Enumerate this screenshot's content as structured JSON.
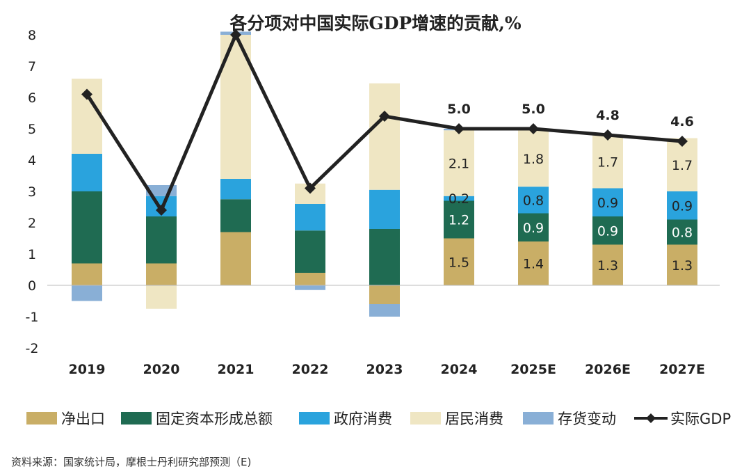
{
  "chart_data": {
    "type": "bar",
    "title": "各分项对中国实际GDP增速的贡献,%",
    "categories": [
      "2019",
      "2020",
      "2021",
      "2022",
      "2023",
      "2024",
      "2025E",
      "2026E",
      "2027E"
    ],
    "ylim": [
      -2,
      8
    ],
    "yticks": [
      8,
      7,
      6,
      5,
      4,
      3,
      2,
      1,
      0,
      -1,
      -2
    ],
    "grid": false,
    "legend_position": "bottom",
    "stacked": true,
    "series": [
      {
        "name": "净出口",
        "color": "#C9AE66",
        "values": [
          0.7,
          0.7,
          1.7,
          0.4,
          -0.6,
          1.5,
          1.4,
          1.3,
          1.3
        ],
        "labels": [
          "",
          "",
          "",
          "",
          "",
          "1.5",
          "1.4",
          "1.3",
          "1.3"
        ]
      },
      {
        "name": "固定资本形成总额",
        "color": "#1F6B52",
        "values": [
          2.3,
          1.5,
          1.05,
          1.35,
          1.8,
          1.2,
          0.9,
          0.9,
          0.8
        ],
        "labels": [
          "",
          "",
          "",
          "",
          "",
          "1.2",
          "0.9",
          "0.9",
          "0.8"
        ]
      },
      {
        "name": "政府消费",
        "color": "#2AA3DD",
        "values": [
          1.2,
          0.65,
          0.65,
          0.85,
          1.25,
          0.15,
          0.85,
          0.9,
          0.9
        ],
        "labels": [
          "",
          "",
          "",
          "",
          "",
          "0.2",
          "0.8",
          "0.9",
          "0.9"
        ]
      },
      {
        "name": "居民消费",
        "color": "#EFE6C3",
        "values": [
          2.4,
          -0.75,
          4.6,
          0.65,
          3.4,
          2.1,
          1.8,
          1.7,
          1.7
        ],
        "labels": [
          "",
          "",
          "",
          "",
          "",
          "2.1",
          "1.8",
          "1.7",
          "1.7"
        ]
      },
      {
        "name": "存货变动",
        "color": "#89AFD6",
        "values": [
          -0.5,
          0.35,
          0.1,
          -0.15,
          -0.4,
          0.05,
          0,
          0,
          0
        ],
        "labels": [
          "",
          "",
          "",
          "",
          "",
          "",
          "",
          "",
          ""
        ]
      }
    ],
    "line": {
      "name": "实际GDP",
      "color": "#222222",
      "values": [
        6.1,
        2.4,
        8.0,
        3.1,
        5.4,
        5.0,
        5.0,
        4.8,
        4.6
      ],
      "labels": [
        "",
        "",
        "",
        "",
        "",
        "5.0",
        "5.0",
        "4.8",
        "4.6"
      ]
    },
    "source": "资料来源：国家统计局，摩根士丹利研究部预测（E)"
  }
}
